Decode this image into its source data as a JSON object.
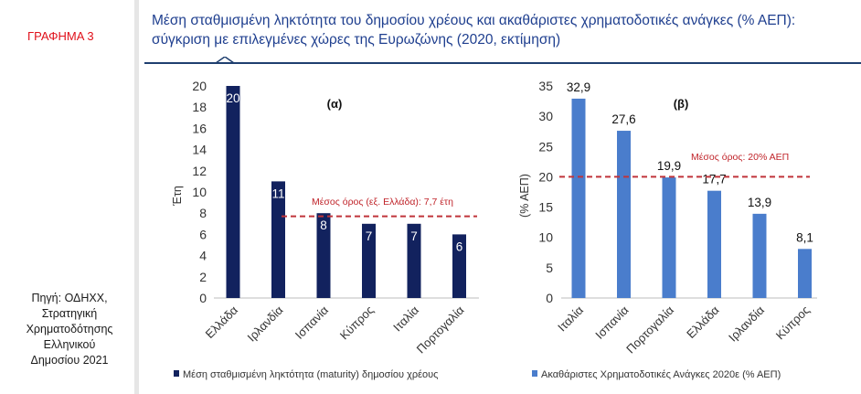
{
  "sidebar": {
    "figure_label": "ΓΡΑΦΗΜΑ 3",
    "source_lines": [
      "Πηγή: ΟΔΗΧΧ,",
      "Στρατηγική",
      "Χρηματοδότησης",
      "Ελληνικού",
      "Δημοσίου 2021"
    ]
  },
  "header": {
    "title_line1": "Μέση σταθμισμένη ληκτότητα του δημοσίου χρέους και ακαθάριστες χρηματοδοτικές ανάγκες (% ΑΕΠ):",
    "title_line2": "σύγκριση με επιλεγμένες χώρες της Ευρωζώνης (2020, εκτίμηση)"
  },
  "colors": {
    "left_bars": "#12225e",
    "right_bars": "#4a7dcc",
    "reference_line": "#c0343a",
    "title": "#1f3f8f",
    "figure_label": "#e0101a"
  },
  "chart_data": [
    {
      "type": "bar",
      "panel_label": "(α)",
      "categories": [
        "Ελλάδα",
        "Ιρλανδία",
        "Ισπανία",
        "Κύπρος",
        "Ιταλία",
        "Πορτογαλία"
      ],
      "values": [
        20,
        11,
        8,
        7,
        7,
        6
      ],
      "data_labels": [
        "20",
        "11",
        "8",
        "7",
        "7",
        "6"
      ],
      "ylabel": "Έτη",
      "ylim": [
        0,
        20
      ],
      "yticks": [
        "0",
        "2",
        "4",
        "6",
        "8",
        "10",
        "12",
        "14",
        "16",
        "18",
        "20"
      ],
      "reference_line": {
        "value": 7.7,
        "label": "Μέσος όρος (εξ. Ελλάδα): 7,7 έτη"
      },
      "legend": "Μέση σταθμισμένη ληκτότητα (maturity) δημοσίου χρέους",
      "legend_placement": "bottom",
      "grid": false
    },
    {
      "type": "bar",
      "panel_label": "(β)",
      "categories": [
        "Ιταλία",
        "Ισπανία",
        "Πορτογαλία",
        "Ελλάδα",
        "Ιρλανδία",
        "Κύπρος"
      ],
      "values": [
        32.9,
        27.6,
        19.9,
        17.7,
        13.9,
        8.1
      ],
      "data_labels": [
        "32,9",
        "27,6",
        "19,9",
        "17,7",
        "13,9",
        "8,1"
      ],
      "ylabel": "(% ΑΕΠ)",
      "ylim": [
        0,
        35
      ],
      "yticks": [
        "0",
        "5",
        "10",
        "15",
        "20",
        "25",
        "30",
        "35"
      ],
      "reference_line": {
        "value": 20,
        "label": "Μέσος όρος: 20% ΑΕΠ"
      },
      "legend": "Ακαθάριστες Χρηματοδοτικές Ανάγκες 2020ε (% ΑΕΠ)",
      "legend_placement": "bottom",
      "grid": false
    }
  ]
}
